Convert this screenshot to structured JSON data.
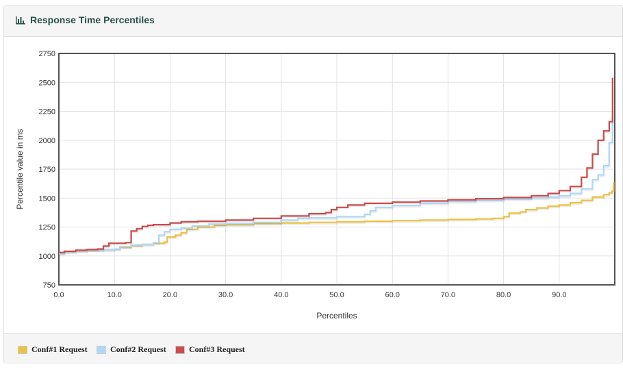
{
  "panel": {
    "title": "Response Time Percentiles"
  },
  "chart_data": {
    "type": "line",
    "title": "Response Time Percentiles",
    "xlabel": "Percentiles",
    "ylabel": "Percentile value in ms",
    "xlim": [
      0,
      100
    ],
    "ylim": [
      750,
      2750
    ],
    "grid": true,
    "legend_placement": "bottom",
    "x_ticks": [
      0,
      10,
      20,
      30,
      40,
      50,
      60,
      70,
      80,
      90
    ],
    "x_tick_labels": [
      "0.0",
      "10.0",
      "20.0",
      "30.0",
      "40.0",
      "50.0",
      "60.0",
      "70.0",
      "80.0",
      "90.0"
    ],
    "y_ticks": [
      750,
      1000,
      1250,
      1500,
      1750,
      2000,
      2250,
      2500,
      2750
    ],
    "y_tick_labels": [
      "750",
      "1000",
      "1250",
      "1500",
      "1750",
      "2000",
      "2250",
      "2500",
      "2750"
    ],
    "series": [
      {
        "name": "Conf#1 Request",
        "color": "#edc240",
        "points": [
          [
            0,
            1030
          ],
          [
            1,
            1040
          ],
          [
            3,
            1045
          ],
          [
            5,
            1050
          ],
          [
            8,
            1055
          ],
          [
            10,
            1060
          ],
          [
            11,
            1075
          ],
          [
            13,
            1090
          ],
          [
            15,
            1100
          ],
          [
            17,
            1110
          ],
          [
            19,
            1120
          ],
          [
            19.5,
            1165
          ],
          [
            21,
            1180
          ],
          [
            22,
            1200
          ],
          [
            23,
            1230
          ],
          [
            25,
            1250
          ],
          [
            28,
            1265
          ],
          [
            30,
            1270
          ],
          [
            35,
            1280
          ],
          [
            40,
            1285
          ],
          [
            45,
            1290
          ],
          [
            50,
            1295
          ],
          [
            55,
            1300
          ],
          [
            60,
            1305
          ],
          [
            65,
            1310
          ],
          [
            70,
            1315
          ],
          [
            75,
            1320
          ],
          [
            78,
            1325
          ],
          [
            80,
            1340
          ],
          [
            81,
            1370
          ],
          [
            83,
            1380
          ],
          [
            84,
            1400
          ],
          [
            86,
            1415
          ],
          [
            88,
            1430
          ],
          [
            90,
            1440
          ],
          [
            92,
            1460
          ],
          [
            94,
            1480
          ],
          [
            96,
            1510
          ],
          [
            98,
            1530
          ],
          [
            99,
            1545
          ],
          [
            99.5,
            1560
          ],
          [
            99.8,
            1640
          ]
        ]
      },
      {
        "name": "Conf#2 Request",
        "color": "#afd8f8",
        "points": [
          [
            0,
            1020
          ],
          [
            1,
            1035
          ],
          [
            3,
            1045
          ],
          [
            5,
            1050
          ],
          [
            8,
            1055
          ],
          [
            10,
            1060
          ],
          [
            11,
            1080
          ],
          [
            13,
            1095
          ],
          [
            15,
            1100
          ],
          [
            17,
            1115
          ],
          [
            18,
            1180
          ],
          [
            19,
            1210
          ],
          [
            20,
            1230
          ],
          [
            22,
            1240
          ],
          [
            24,
            1260
          ],
          [
            27,
            1275
          ],
          [
            30,
            1280
          ],
          [
            35,
            1290
          ],
          [
            40,
            1310
          ],
          [
            43,
            1325
          ],
          [
            45,
            1330
          ],
          [
            50,
            1340
          ],
          [
            55,
            1360
          ],
          [
            56,
            1390
          ],
          [
            57,
            1420
          ],
          [
            60,
            1435
          ],
          [
            65,
            1455
          ],
          [
            70,
            1470
          ],
          [
            75,
            1480
          ],
          [
            80,
            1490
          ],
          [
            85,
            1500
          ],
          [
            88,
            1510
          ],
          [
            90,
            1520
          ],
          [
            92,
            1540
          ],
          [
            94,
            1580
          ],
          [
            96,
            1660
          ],
          [
            97,
            1700
          ],
          [
            98,
            1780
          ],
          [
            99,
            1980
          ],
          [
            99.6,
            2220
          ]
        ]
      },
      {
        "name": "Conf#3 Request",
        "color": "#cb4b4b",
        "points": [
          [
            0,
            1030
          ],
          [
            1,
            1040
          ],
          [
            3,
            1050
          ],
          [
            5,
            1055
          ],
          [
            7,
            1060
          ],
          [
            8,
            1085
          ],
          [
            9,
            1110
          ],
          [
            12,
            1115
          ],
          [
            13,
            1215
          ],
          [
            14,
            1235
          ],
          [
            15,
            1255
          ],
          [
            16,
            1265
          ],
          [
            17,
            1270
          ],
          [
            20,
            1285
          ],
          [
            22,
            1295
          ],
          [
            25,
            1300
          ],
          [
            30,
            1310
          ],
          [
            35,
            1325
          ],
          [
            40,
            1345
          ],
          [
            45,
            1365
          ],
          [
            48,
            1375
          ],
          [
            49,
            1400
          ],
          [
            50,
            1420
          ],
          [
            52,
            1440
          ],
          [
            55,
            1455
          ],
          [
            60,
            1465
          ],
          [
            65,
            1475
          ],
          [
            70,
            1485
          ],
          [
            75,
            1495
          ],
          [
            80,
            1505
          ],
          [
            85,
            1520
          ],
          [
            88,
            1540
          ],
          [
            90,
            1565
          ],
          [
            92,
            1600
          ],
          [
            94,
            1680
          ],
          [
            95,
            1760
          ],
          [
            96,
            1880
          ],
          [
            97,
            2000
          ],
          [
            98,
            2080
          ],
          [
            99,
            2160
          ],
          [
            99.6,
            2540
          ]
        ]
      }
    ]
  }
}
